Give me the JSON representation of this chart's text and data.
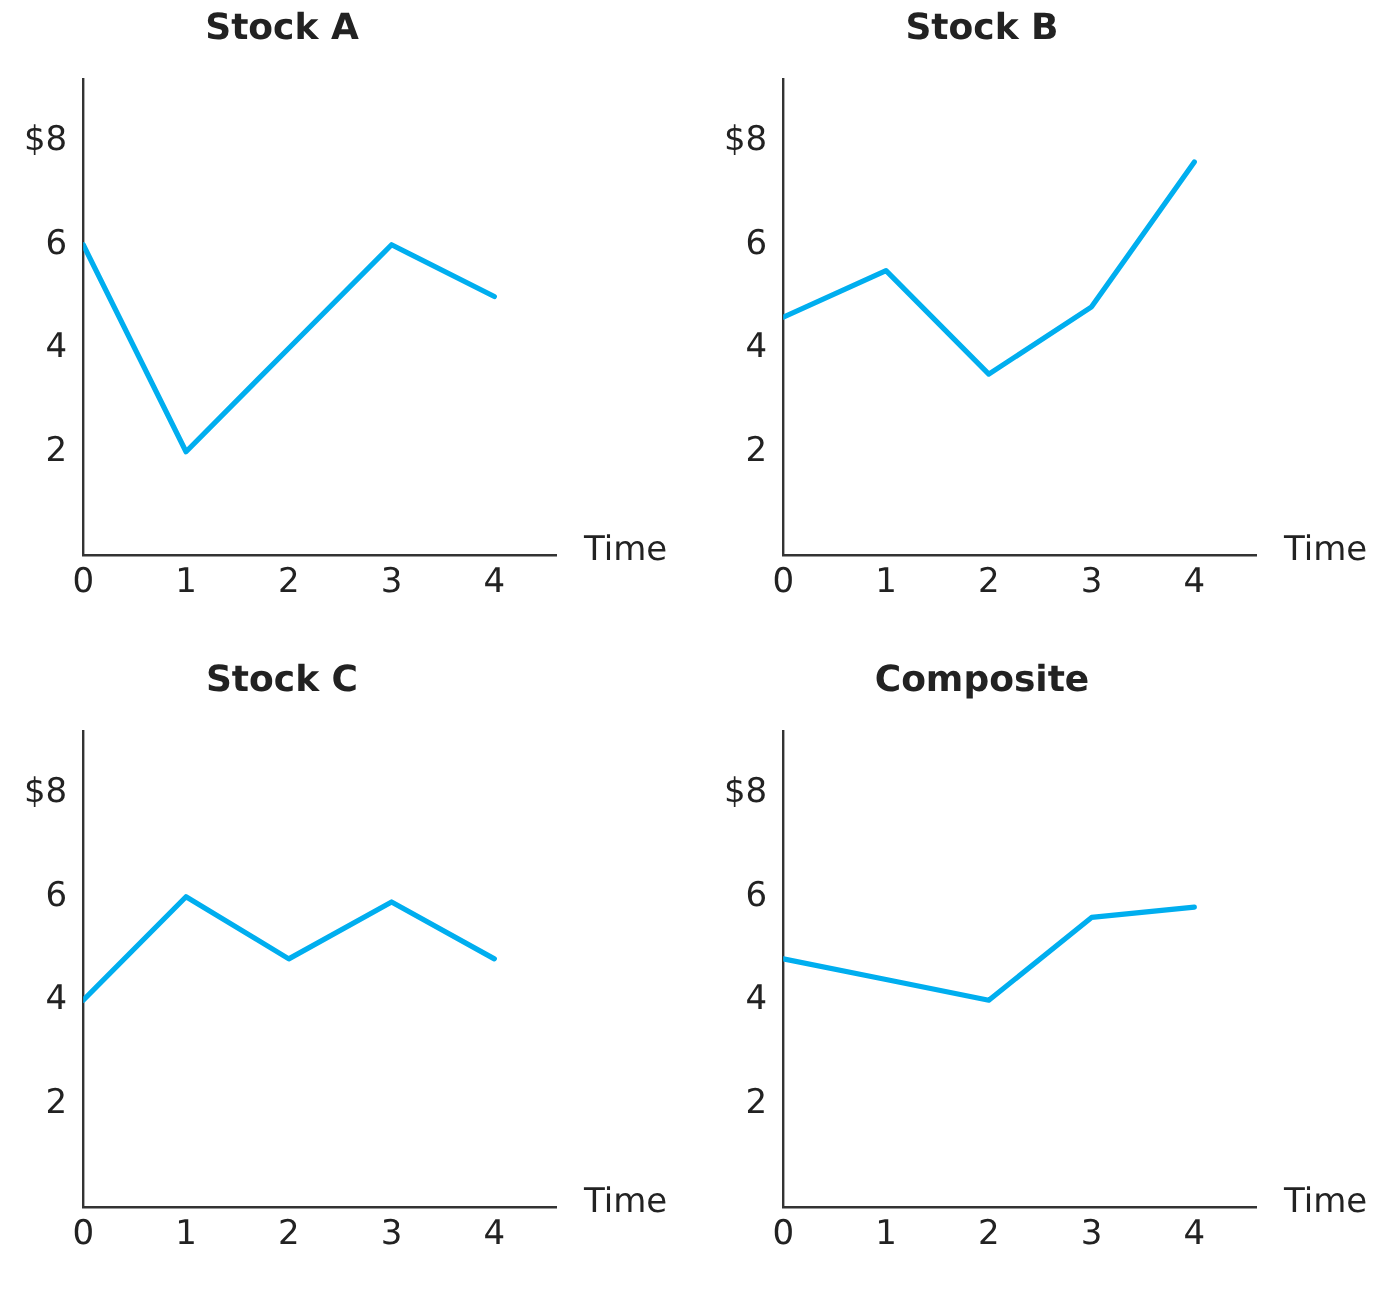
{
  "chart_data": [
    {
      "type": "line",
      "title": "Stock A",
      "xlabel": "Time",
      "x": [
        0,
        1,
        2,
        3,
        4
      ],
      "series": [
        {
          "color": "#00aeef",
          "values": [
            6,
            2,
            4,
            6,
            5
          ]
        }
      ],
      "xlim": [
        0,
        4.6
      ],
      "xticks": [
        0,
        1,
        2,
        3,
        4
      ],
      "ylim": [
        0,
        9.2
      ],
      "yticks": [
        {
          "value": 2,
          "label": "2"
        },
        {
          "value": 4,
          "label": "4"
        },
        {
          "value": 6,
          "label": "6"
        },
        {
          "value": 8,
          "label": "$8"
        }
      ],
      "grid": false,
      "legend": false,
      "marker": "none",
      "line_style": "solid"
    },
    {
      "type": "line",
      "title": "Stock B",
      "xlabel": "Time",
      "x": [
        0,
        1,
        2,
        3,
        4
      ],
      "series": [
        {
          "color": "#00aeef",
          "values": [
            4.6,
            5.5,
            3.5,
            4.8,
            7.6
          ]
        }
      ],
      "xlim": [
        0,
        4.6
      ],
      "xticks": [
        0,
        1,
        2,
        3,
        4
      ],
      "ylim": [
        0,
        9.2
      ],
      "yticks": [
        {
          "value": 2,
          "label": "2"
        },
        {
          "value": 4,
          "label": "4"
        },
        {
          "value": 6,
          "label": "6"
        },
        {
          "value": 8,
          "label": "$8"
        }
      ],
      "grid": false,
      "legend": false,
      "marker": "none",
      "line_style": "solid"
    },
    {
      "type": "line",
      "title": "Stock C",
      "xlabel": "Time",
      "x": [
        0,
        1,
        2,
        3,
        4
      ],
      "series": [
        {
          "color": "#00aeef",
          "values": [
            4,
            6,
            4.8,
            5.9,
            4.8
          ]
        }
      ],
      "xlim": [
        0,
        4.6
      ],
      "xticks": [
        0,
        1,
        2,
        3,
        4
      ],
      "ylim": [
        0,
        9.2
      ],
      "yticks": [
        {
          "value": 2,
          "label": "2"
        },
        {
          "value": 4,
          "label": "4"
        },
        {
          "value": 6,
          "label": "6"
        },
        {
          "value": 8,
          "label": "$8"
        }
      ],
      "grid": false,
      "legend": false,
      "marker": "none",
      "line_style": "solid"
    },
    {
      "type": "line",
      "title": "Composite",
      "xlabel": "Time",
      "x": [
        0,
        1,
        2,
        3,
        4
      ],
      "series": [
        {
          "color": "#00aeef",
          "values": [
            4.8,
            4.4,
            4,
            5.6,
            5.8
          ]
        }
      ],
      "xlim": [
        0,
        4.6
      ],
      "xticks": [
        0,
        1,
        2,
        3,
        4
      ],
      "ylim": [
        0,
        9.2
      ],
      "yticks": [
        {
          "value": 2,
          "label": "2"
        },
        {
          "value": 4,
          "label": "4"
        },
        {
          "value": 6,
          "label": "6"
        },
        {
          "value": 8,
          "label": "$8"
        }
      ],
      "grid": false,
      "legend": false,
      "marker": "none",
      "line_style": "solid"
    }
  ]
}
